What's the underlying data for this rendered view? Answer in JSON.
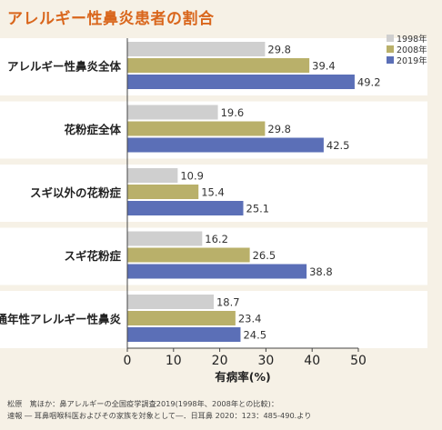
{
  "title": "アレルギー性鼻炎患者の割合",
  "colors": {
    "title": "#d9661c",
    "band": "#ffffff",
    "s1998": "#cfcfcf",
    "s2008": "#b9b06a",
    "s2019": "#5b6fb7"
  },
  "chart_data": {
    "type": "bar",
    "orientation": "horizontal",
    "categories": [
      "アレルギー性鼻炎全体",
      "花粉症全体",
      "スギ以外の花粉症",
      "スギ花粉症",
      "通年性アレルギー性鼻炎"
    ],
    "series": [
      {
        "name": "1998年",
        "values": [
          29.8,
          19.6,
          10.9,
          16.2,
          18.7
        ]
      },
      {
        "name": "2008年",
        "values": [
          39.4,
          29.8,
          15.4,
          26.5,
          23.4
        ]
      },
      {
        "name": "2019年",
        "values": [
          49.2,
          42.5,
          25.1,
          38.8,
          24.5
        ]
      }
    ],
    "xlabel": "有病率(%)",
    "xlim": [
      0,
      50
    ],
    "xticks": [
      0,
      10,
      20,
      30,
      40,
      50
    ],
    "legend_position": "top-right"
  },
  "source": {
    "line1": "松原　篤ほか：鼻アレルギーの全国疫学調査2019(1998年、2008年との比較)：",
    "line2": "速報 ― 耳鼻咽喉科医およびその家族を対象として―．日耳鼻 2020：123：485-490.より"
  }
}
